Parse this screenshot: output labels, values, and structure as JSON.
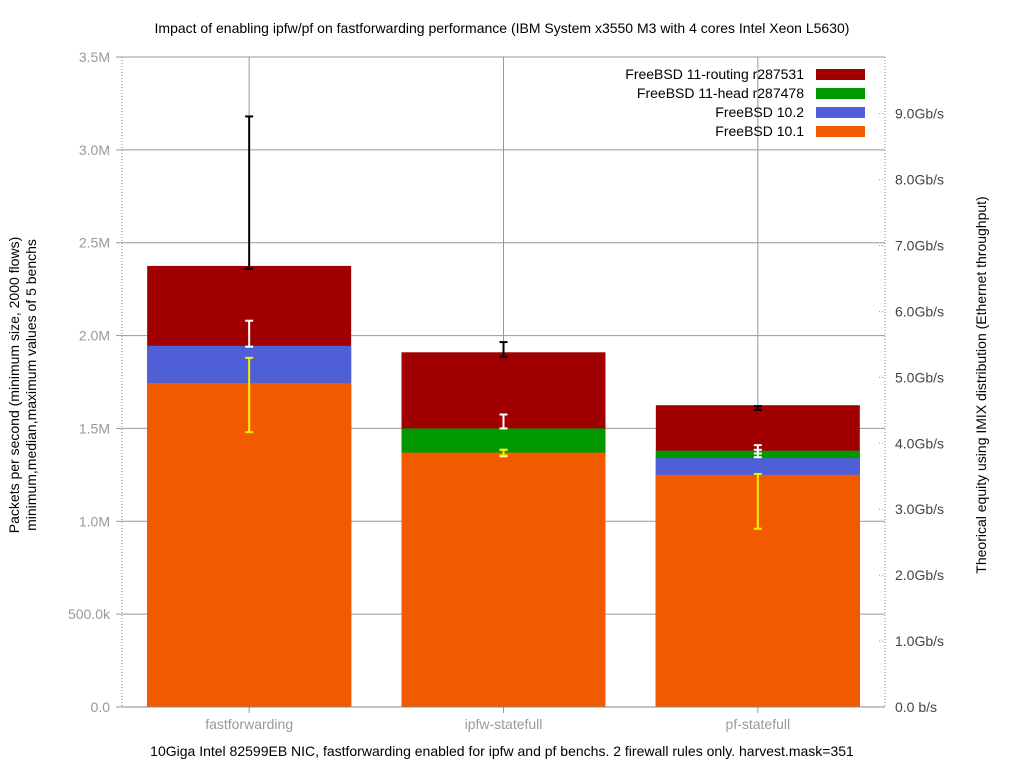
{
  "chart_data": {
    "type": "bar",
    "title": "Impact of enabling ipfw/pf on fastforwarding performance (IBM System x3550 M3 with 4 cores Intel Xeon L5630)",
    "xlabel": "10Giga Intel 82599EB NIC, fastforwarding enabled for ipfw and pf benchs. 2 firewall rules only. harvest.mask=351",
    "ylabel": [
      "Packets per second (minimum size, 2000 flows)",
      "minimum,median,maximum values of 5 benchs"
    ],
    "y2label": "Theorical equity using IMIX distribution (Ethernet throughput)",
    "ylim": [
      0,
      3500000
    ],
    "yticks": [
      {
        "v": 0,
        "label": "0.0"
      },
      {
        "v": 500000,
        "label": "500.0k"
      },
      {
        "v": 1000000,
        "label": "1.0M"
      },
      {
        "v": 1500000,
        "label": "1.5M"
      },
      {
        "v": 2000000,
        "label": "2.0M"
      },
      {
        "v": 2500000,
        "label": "2.5M"
      },
      {
        "v": 3000000,
        "label": "3.0M"
      },
      {
        "v": 3500000,
        "label": "3.5M"
      }
    ],
    "y2ticks": [
      "0.0 b/s",
      "1.0Gb/s",
      "2.0Gb/s",
      "3.0Gb/s",
      "4.0Gb/s",
      "5.0Gb/s",
      "6.0Gb/s",
      "7.0Gb/s",
      "8.0Gb/s",
      "9.0Gb/s"
    ],
    "y2_step_pps": 355000,
    "grid": true,
    "legend_position": "top-right",
    "categories": [
      "fastforwarding",
      "ipfw-statefull",
      "pf-statefull"
    ],
    "series": [
      {
        "name": "FreeBSD 11-routing r287531",
        "color": "#a00000",
        "values": [
          2375000,
          1910000,
          1625000
        ],
        "err_min": [
          2360000,
          1885000,
          1600000
        ],
        "err_max": [
          3180000,
          1965000,
          1620000
        ],
        "err_color": "#000000"
      },
      {
        "name": "FreeBSD 11-head r287478",
        "color": "#009900",
        "values": [
          null,
          1500000,
          1380000
        ],
        "err_min": [
          null,
          1350000,
          1365000
        ],
        "err_max": [
          null,
          1385000,
          1385000
        ],
        "err_color": "#ffffff"
      },
      {
        "name": "FreeBSD 10.2",
        "color": "#4f5fd6",
        "values": [
          1945000,
          null,
          1340000
        ],
        "err_min": [
          1940000,
          1500000,
          1345000
        ],
        "err_max": [
          2080000,
          1575000,
          1410000
        ],
        "err_color": "#ffffff"
      },
      {
        "name": "FreeBSD 10.1",
        "color": "#f25a00",
        "values": [
          1745000,
          1370000,
          1250000
        ],
        "err_min": [
          1480000,
          1355000,
          960000
        ],
        "err_max": [
          1880000,
          1385000,
          1255000
        ],
        "err_color": "#f2f200"
      }
    ]
  }
}
